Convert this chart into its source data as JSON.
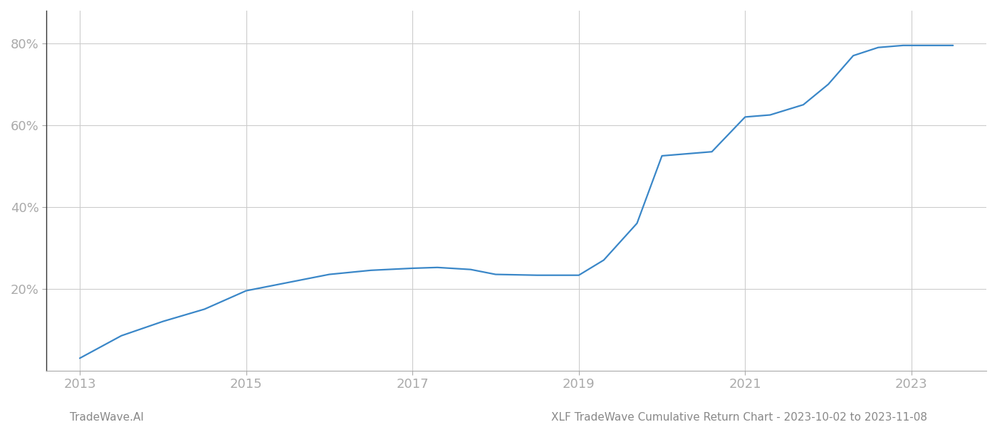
{
  "title": "",
  "footer_left": "TradeWave.AI",
  "footer_right": "XLF TradeWave Cumulative Return Chart - 2023-10-02 to 2023-11-08",
  "line_color": "#3a87c8",
  "background_color": "#ffffff",
  "grid_color": "#cccccc",
  "x_years": [
    2013.0,
    2013.5,
    2014.0,
    2014.5,
    2015.0,
    2015.5,
    2016.0,
    2016.5,
    2017.0,
    2017.3,
    2017.7,
    2018.0,
    2018.5,
    2019.0,
    2019.3,
    2019.7,
    2020.0,
    2020.3,
    2020.6,
    2021.0,
    2021.3,
    2021.7,
    2022.0,
    2022.3,
    2022.6,
    2022.9,
    2023.0,
    2023.5
  ],
  "y_values": [
    3.0,
    8.5,
    12.0,
    15.0,
    19.5,
    21.5,
    23.5,
    24.5,
    25.0,
    25.2,
    24.7,
    23.5,
    23.3,
    23.3,
    27.0,
    36.0,
    52.5,
    53.0,
    53.5,
    62.0,
    62.5,
    65.0,
    70.0,
    77.0,
    79.0,
    79.5,
    79.5,
    79.5
  ],
  "xlim": [
    2012.6,
    2023.9
  ],
  "ylim": [
    0,
    88
  ],
  "yticks": [
    20,
    40,
    60,
    80
  ],
  "xticks": [
    2013,
    2015,
    2017,
    2019,
    2021,
    2023
  ],
  "tick_color": "#aaaaaa",
  "spine_color": "#333333",
  "label_color": "#aaaaaa",
  "footer_fontsize": 11,
  "tick_fontsize": 13,
  "line_width": 1.6
}
